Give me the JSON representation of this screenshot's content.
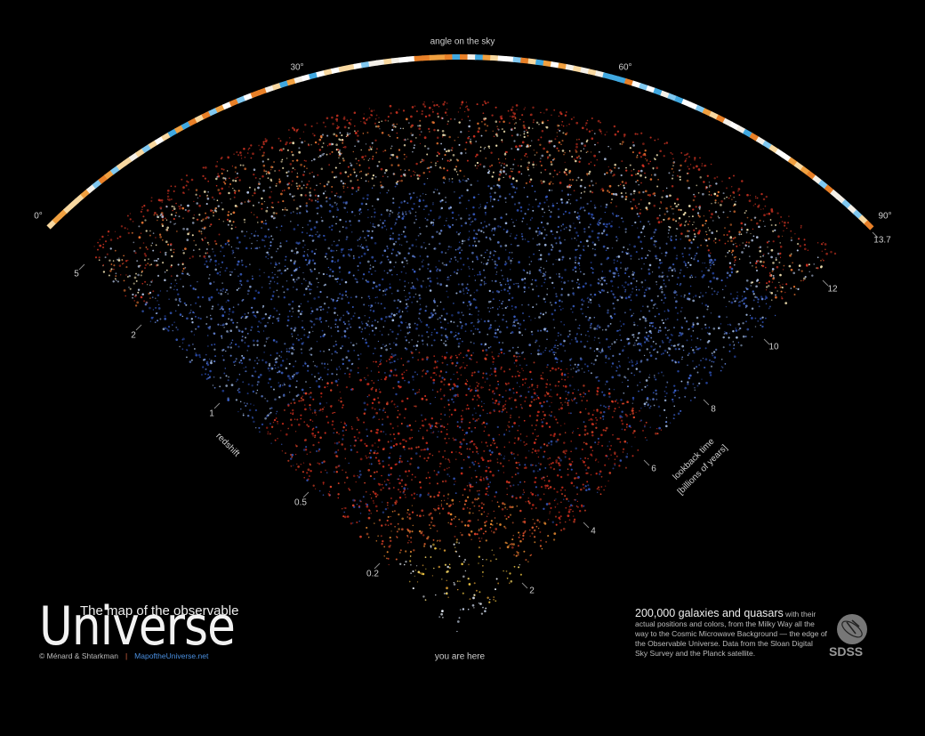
{
  "sky_axis": {
    "label": "angle on the sky",
    "ticks": [
      "0°",
      "30°",
      "60°",
      "90°"
    ]
  },
  "redshift_axis": {
    "label": "redshift",
    "ticks": [
      "5",
      "2",
      "1",
      "0.5",
      "0.2"
    ]
  },
  "lookback_axis": {
    "label": "lookback time",
    "sublabel": "[billions of years]",
    "ticks": [
      "13.7",
      "12",
      "10",
      "8",
      "6",
      "4",
      "2"
    ]
  },
  "marker": "you are here",
  "title": {
    "line1": "The map of the observable",
    "line2": "Universe",
    "credit": "© Ménard & Shtarkman",
    "separator": "|",
    "url": "MapoftheUniverse.net"
  },
  "caption": {
    "lead": "200,000 galaxies and quasars",
    "body": "with their actual positions and colors, from the Milky Way all the way to the Cosmic Microwave Background — the edge of the Observable Universe. Data from the Sloan Digital Sky Survey and the Planck satellite."
  },
  "logo": "SDSS"
}
